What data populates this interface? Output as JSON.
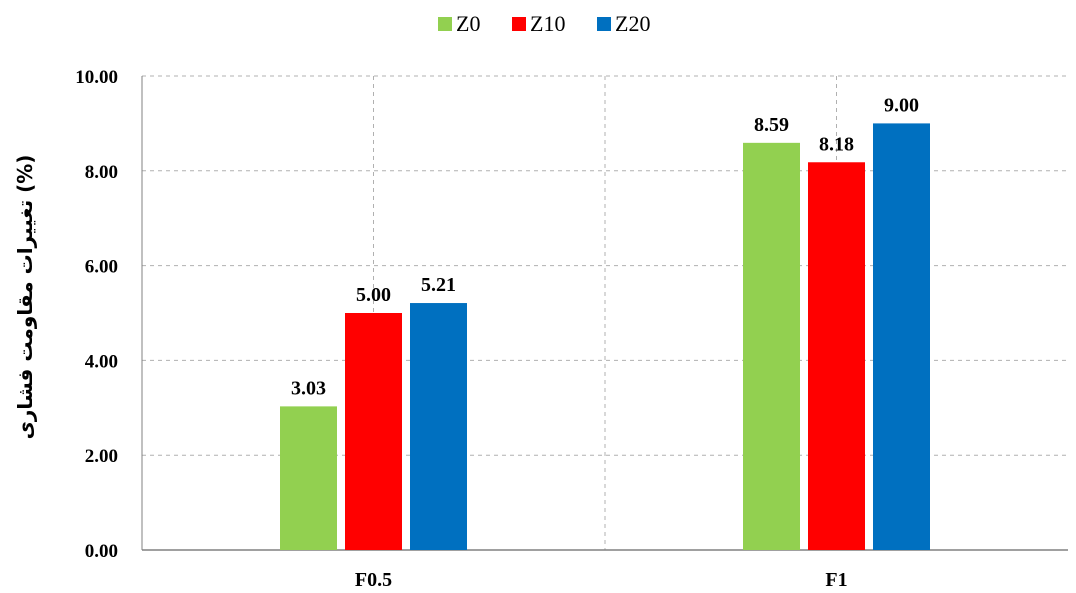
{
  "chart_data": {
    "type": "bar",
    "categories": [
      "F0.5",
      "F1"
    ],
    "series": [
      {
        "name": "Z0",
        "color": "#92d050",
        "values": [
          3.03,
          8.59
        ],
        "labels": [
          "3.03",
          "8.59"
        ]
      },
      {
        "name": "Z10",
        "color": "#ff0000",
        "values": [
          5.0,
          8.18
        ],
        "labels": [
          "5.00",
          "8.18"
        ]
      },
      {
        "name": "Z20",
        "color": "#0070c0",
        "values": [
          5.21,
          9.0
        ],
        "labels": [
          "5.21",
          "9.00"
        ]
      }
    ],
    "title": "",
    "xlabel": "",
    "ylabel": "تغییرات مقاومت فشاری (%)",
    "ylim": [
      0,
      10
    ],
    "yticks": [
      "0.00",
      "2.00",
      "4.00",
      "6.00",
      "8.00",
      "10.00"
    ],
    "grid": true,
    "legend_position": "top"
  }
}
